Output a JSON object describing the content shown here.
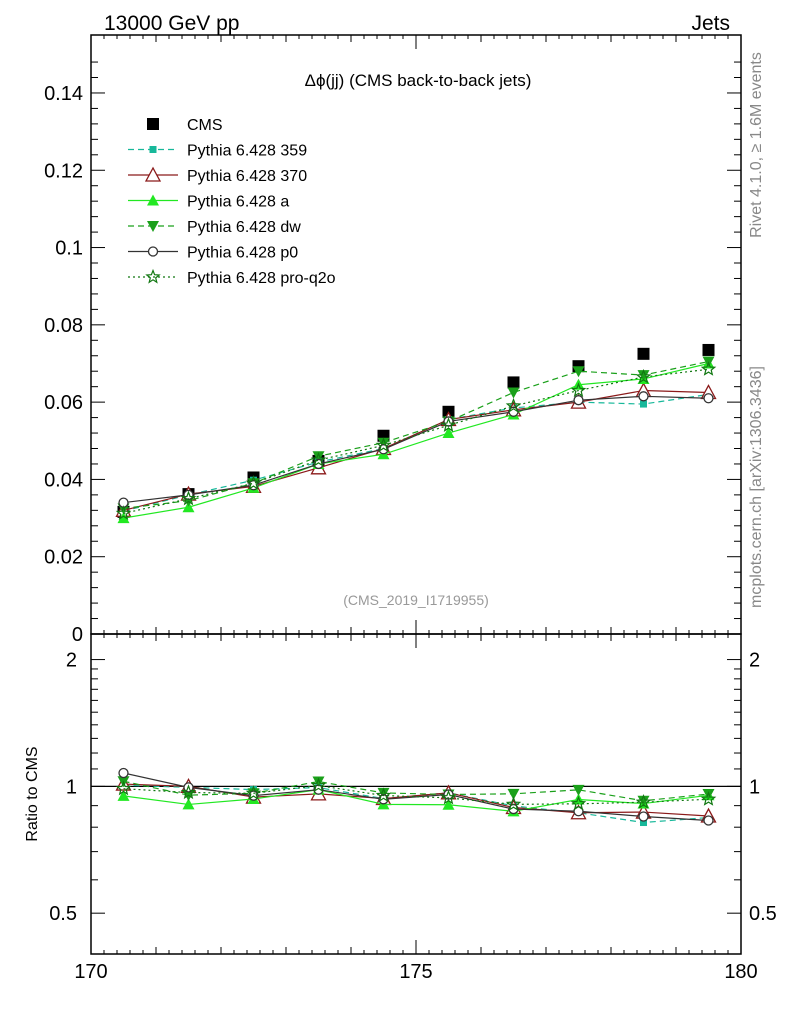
{
  "header": {
    "left": "13000 GeV pp",
    "right": "Jets"
  },
  "side": {
    "rivet": "Rivet 4.1.0, ≥ 1.6M events",
    "mcplots": "mcplots.cern.ch [arXiv:1306.3436]"
  },
  "analysis_id": "(CMS_2019_I1719955)",
  "ratio_ylabel": "Ratio to CMS",
  "chart_data": {
    "type": "line",
    "title": "Δϕ(jj) (CMS back-to-back jets)",
    "x": [
      170.5,
      171.5,
      172.5,
      173.5,
      174.5,
      175.5,
      176.5,
      177.5,
      178.5,
      179.5
    ],
    "xlim": [
      170,
      180
    ],
    "xticks": [
      170,
      175,
      180
    ],
    "xtick_labels": [
      "170",
      "175",
      "180"
    ],
    "ylim": [
      0,
      0.155
    ],
    "yticks": [
      0,
      0.02,
      0.04,
      0.06,
      0.08,
      0.1,
      0.12,
      0.14
    ],
    "ytick_labels": [
      "0",
      "0.02",
      "0.04",
      "0.06",
      "0.08",
      "0.1",
      "0.12",
      "0.14"
    ],
    "ratio_ylim": [
      0.4,
      2.3
    ],
    "ratio_yticks": [
      0.5,
      1,
      2
    ],
    "ratio_ytick_labels": [
      "0.5",
      "1",
      "2"
    ],
    "series": [
      {
        "name": "CMS",
        "color": "#000000",
        "marker": "square",
        "dash": "none",
        "values": [
          0.0316,
          0.0362,
          0.0405,
          0.0448,
          0.0513,
          0.0575,
          0.0651,
          0.0693,
          0.0725,
          0.0735
        ]
      },
      {
        "name": "Pythia 6.428 359",
        "color": "#17b89a",
        "marker": "smallsquare",
        "dash": "dashed",
        "values": [
          0.0318,
          0.036,
          0.0398,
          0.0445,
          0.048,
          0.0555,
          0.0585,
          0.06,
          0.0595,
          0.062
        ]
      },
      {
        "name": "Pythia 6.428 370",
        "color": "#8b1a1a",
        "marker": "triangle-open",
        "dash": "solid",
        "values": [
          0.032,
          0.0362,
          0.0382,
          0.043,
          0.048,
          0.0555,
          0.058,
          0.06,
          0.063,
          0.0625
        ]
      },
      {
        "name": "Pythia 6.428 a",
        "color": "#22e822",
        "marker": "triangle",
        "dash": "solid",
        "values": [
          0.03,
          0.0328,
          0.0378,
          0.044,
          0.0465,
          0.052,
          0.0568,
          0.0645,
          0.066,
          0.07
        ]
      },
      {
        "name": "Pythia 6.428 dw",
        "color": "#1aa01a",
        "marker": "triangle-down",
        "dash": "dashed",
        "values": [
          0.0325,
          0.0345,
          0.039,
          0.046,
          0.0495,
          0.055,
          0.0625,
          0.068,
          0.067,
          0.0705
        ]
      },
      {
        "name": "Pythia 6.428 p0",
        "color": "#333333",
        "marker": "circle-open",
        "dash": "solid",
        "values": [
          0.034,
          0.036,
          0.0385,
          0.044,
          0.0478,
          0.055,
          0.0575,
          0.0605,
          0.0615,
          0.061
        ]
      },
      {
        "name": "Pythia 6.428 pro-q2o",
        "color": "#117711",
        "marker": "star",
        "dash": "dotted",
        "values": [
          0.0312,
          0.035,
          0.039,
          0.045,
          0.0488,
          0.054,
          0.059,
          0.063,
          0.0665,
          0.0685
        ]
      }
    ]
  }
}
